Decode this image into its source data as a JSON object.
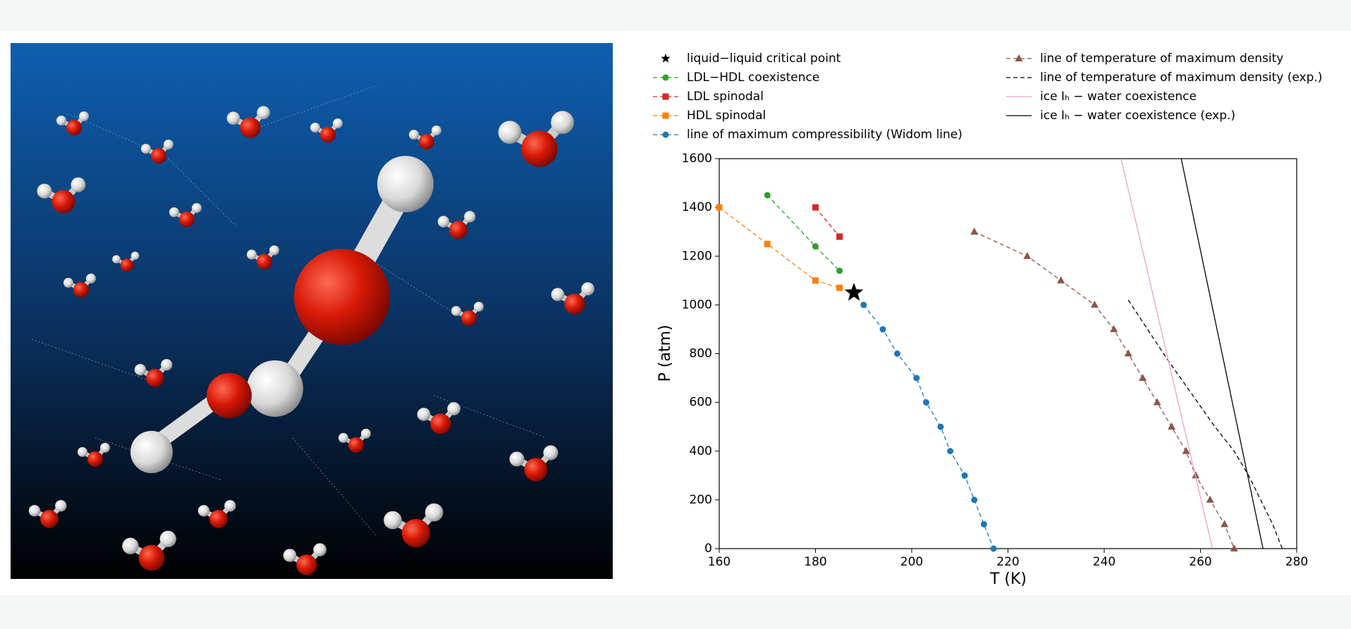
{
  "chart_data": {
    "type": "line",
    "x_label": "T (K)",
    "y_label": "P (atm)",
    "xlim": [
      160,
      280
    ],
    "xticks": [
      160,
      180,
      200,
      220,
      240,
      260,
      280
    ],
    "ylim": [
      0,
      1600
    ],
    "yticks": [
      0,
      200,
      400,
      600,
      800,
      1000,
      1200,
      1400,
      1600
    ],
    "grid": false,
    "series": [
      {
        "name": "liquid−liquid critical point",
        "color": "#000000",
        "marker": "star",
        "linestyle": "none",
        "x": [
          188
        ],
        "values": [
          1050
        ]
      },
      {
        "name": "LDL−HDL coexistence",
        "color": "#2ca02c",
        "marker": "circle",
        "linestyle": "dashed",
        "x": [
          170,
          180,
          185
        ],
        "values": [
          1450,
          1240,
          1140
        ]
      },
      {
        "name": "LDL spinodal",
        "color": "#d62728",
        "marker": "square",
        "linestyle": "dashed",
        "x": [
          180,
          185
        ],
        "values": [
          1400,
          1280
        ]
      },
      {
        "name": "HDL spinodal",
        "color": "#ff7f0e",
        "marker": "square",
        "linestyle": "dashed",
        "x": [
          160,
          170,
          180,
          185
        ],
        "values": [
          1400,
          1250,
          1100,
          1070
        ]
      },
      {
        "name": "line of maximum compressibility (Widom line)",
        "color": "#1f77b4",
        "marker": "circle",
        "linestyle": "dashed",
        "x": [
          190,
          194,
          197,
          201,
          203,
          206,
          208,
          211,
          213,
          215,
          217
        ],
        "values": [
          1000,
          900,
          800,
          700,
          600,
          500,
          400,
          300,
          200,
          100,
          0
        ]
      },
      {
        "name": "line of temperature of maximum density",
        "color": "#8c564b",
        "marker": "triangle",
        "linestyle": "dashed",
        "x": [
          213,
          224,
          231,
          238,
          242,
          245,
          248,
          251,
          254,
          257,
          259,
          262,
          265,
          267
        ],
        "values": [
          1300,
          1200,
          1100,
          1000,
          900,
          800,
          700,
          600,
          500,
          400,
          300,
          200,
          100,
          0
        ]
      },
      {
        "name": "line of temperature of maximum density (exp.)",
        "color": "#000000",
        "marker": "none",
        "linestyle": "dashed",
        "x": [
          245,
          249,
          253,
          258,
          263,
          267,
          270,
          273,
          275,
          277
        ],
        "values": [
          1020,
          900,
          780,
          640,
          500,
          400,
          300,
          180,
          100,
          0
        ]
      },
      {
        "name": "ice Iₕ − water coexistence",
        "color": "#e8a0d0",
        "marker": "none",
        "linestyle": "solid",
        "x": [
          243.5,
          262.5
        ],
        "values": [
          1600,
          0
        ]
      },
      {
        "name": "ice Iₕ − water coexistence (exp.)",
        "color": "#000000",
        "marker": "none",
        "linestyle": "solid",
        "x": [
          256,
          273
        ],
        "values": [
          1600,
          0
        ]
      }
    ]
  }
}
